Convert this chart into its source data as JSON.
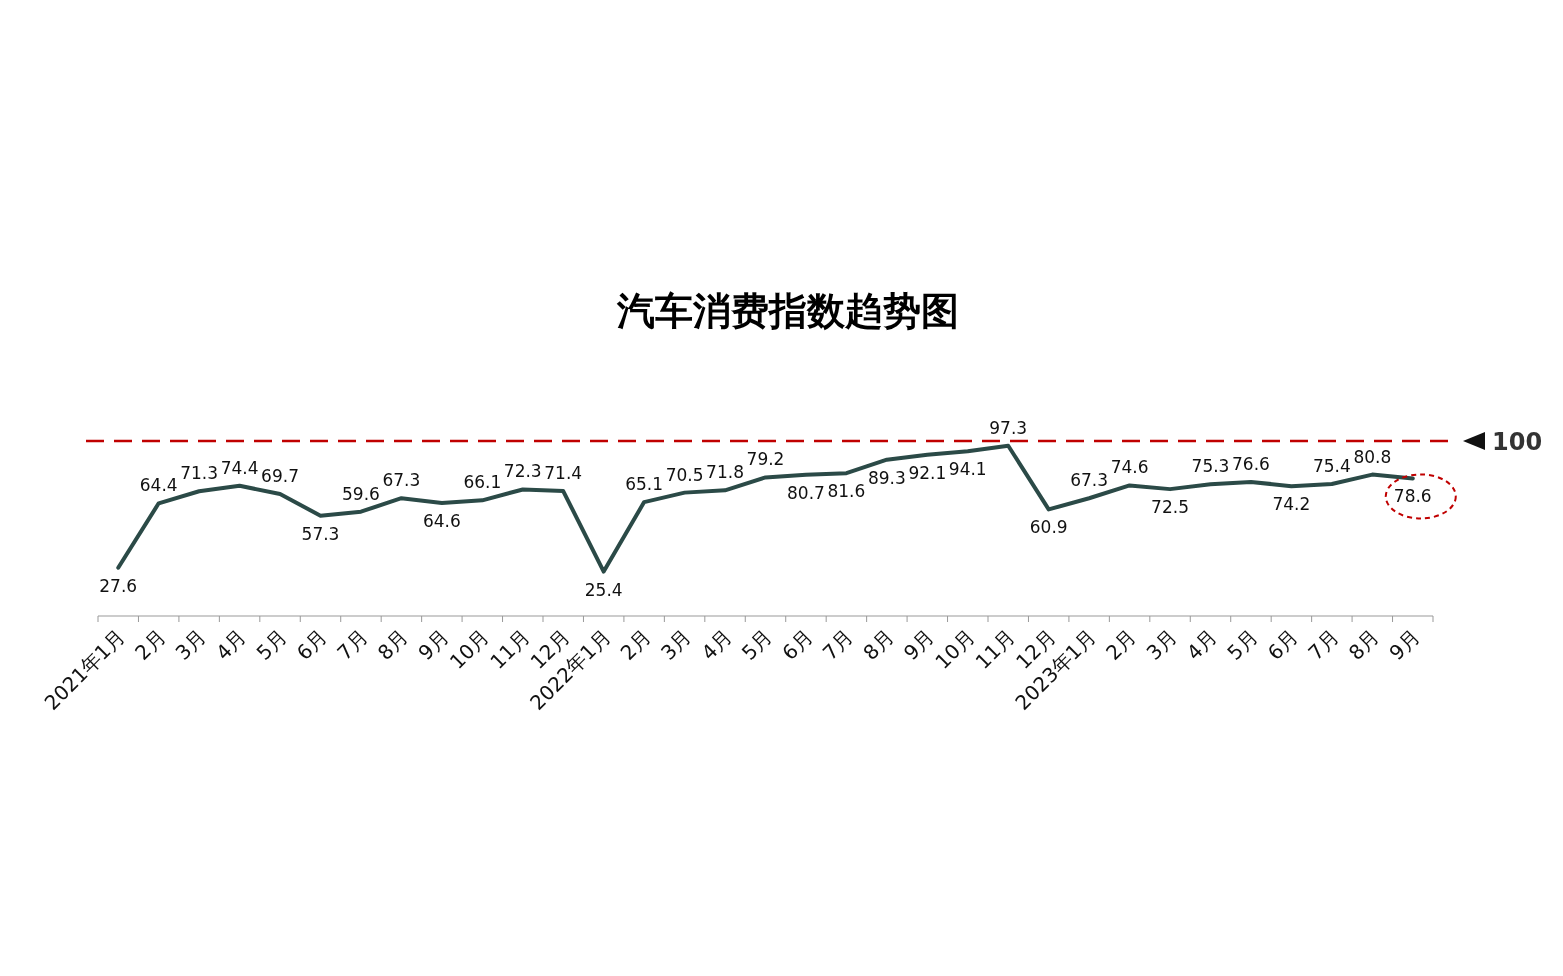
{
  "chart_data": {
    "type": "line",
    "title": "汽车消费指数趋势图",
    "categories": [
      "2021年1月",
      "2月",
      "3月",
      "4月",
      "5月",
      "6月",
      "7月",
      "8月",
      "9月",
      "10月",
      "11月",
      "12月",
      "2022年1月",
      "2月",
      "3月",
      "4月",
      "5月",
      "6月",
      "7月",
      "8月",
      "9月",
      "10月",
      "11月",
      "12月",
      "2023年1月",
      "2月",
      "3月",
      "4月",
      "5月",
      "6月",
      "7月",
      "8月",
      "9月"
    ],
    "series": [
      {
        "color": "#2b4a47",
        "values": [
          27.6,
          64.4,
          71.3,
          74.4,
          69.7,
          57.3,
          59.6,
          67.3,
          64.6,
          66.1,
          72.3,
          71.4,
          25.4,
          65.1,
          70.5,
          71.8,
          79.2,
          80.7,
          81.6,
          89.3,
          92.1,
          94.1,
          97.3,
          60.9,
          67.3,
          74.6,
          72.5,
          75.3,
          76.6,
          74.2,
          75.4,
          80.8,
          78.6
        ]
      }
    ],
    "ylim": [
      0,
      100
    ],
    "tick_labels": "x",
    "data_labels": true,
    "marker": "none",
    "line_style": "solid",
    "ref_lines": [
      {
        "axis": "y",
        "value": 100,
        "label": "100",
        "color": "#c00000",
        "line_style": "dashed"
      }
    ]
  }
}
